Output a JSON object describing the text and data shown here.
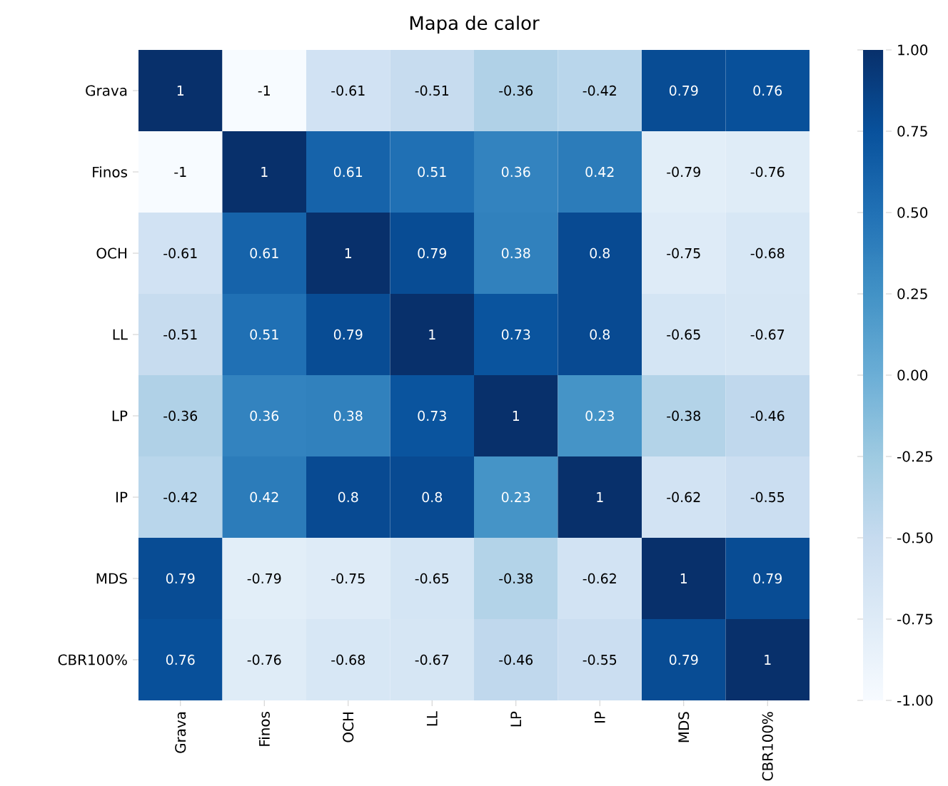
{
  "chart_data": {
    "type": "heatmap",
    "title": "Mapa de calor",
    "categories": [
      "Grava",
      "Finos",
      "OCH",
      "LL",
      "LP",
      "IP",
      "MDS",
      "CBR100%"
    ],
    "y_categories": [
      "Grava",
      "Finos",
      "OCH",
      "LL",
      "LP",
      "IP",
      "MDS",
      "CBR100%"
    ],
    "cells": [
      [
        1,
        -1,
        -0.61,
        -0.51,
        -0.36,
        -0.42,
        0.79,
        0.76
      ],
      [
        -1,
        1,
        0.61,
        0.51,
        0.36,
        0.42,
        -0.79,
        -0.76
      ],
      [
        -0.61,
        0.61,
        1,
        0.79,
        0.38,
        0.8,
        -0.75,
        -0.68
      ],
      [
        -0.51,
        0.51,
        0.79,
        1,
        0.73,
        0.8,
        -0.65,
        -0.67
      ],
      [
        -0.36,
        0.36,
        0.38,
        0.73,
        1,
        0.23,
        -0.38,
        -0.46
      ],
      [
        -0.42,
        0.42,
        0.8,
        0.8,
        0.23,
        1,
        -0.62,
        -0.55
      ],
      [
        0.79,
        -0.79,
        -0.75,
        -0.65,
        -0.38,
        -0.62,
        1,
        0.79
      ],
      [
        0.76,
        -0.76,
        -0.68,
        -0.67,
        -0.46,
        -0.55,
        0.79,
        1
      ]
    ],
    "data_labels": true,
    "clim": [
      -1,
      1
    ],
    "cticks": [
      {
        "value": -1,
        "label": "-1.00"
      },
      {
        "value": -0.75,
        "label": "-0.75"
      },
      {
        "value": -0.5,
        "label": "-0.50"
      },
      {
        "value": -0.25,
        "label": "-0.25"
      },
      {
        "value": 0,
        "label": "0.00"
      },
      {
        "value": 0.25,
        "label": "0.25"
      },
      {
        "value": 0.5,
        "label": "0.50"
      },
      {
        "value": 0.75,
        "label": "0.75"
      },
      {
        "value": 1,
        "label": "1.00"
      }
    ]
  }
}
